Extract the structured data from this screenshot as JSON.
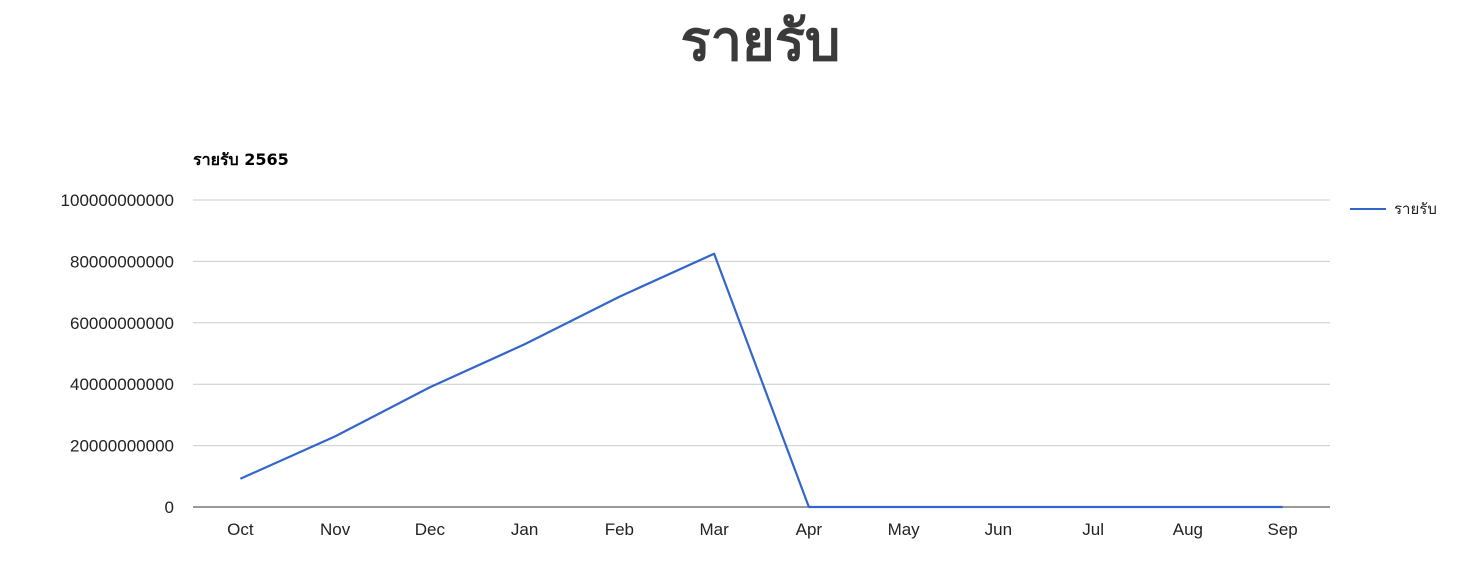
{
  "page": {
    "heading": "รายรับ"
  },
  "colors": {
    "series": "#3366cc",
    "grid": "#cccccc",
    "heading": "#3a3a3a"
  },
  "chart_data": {
    "type": "line",
    "title": "รายรับ 2565",
    "xlabel": "",
    "ylabel": "",
    "categories": [
      "Oct",
      "Nov",
      "Dec",
      "Jan",
      "Feb",
      "Mar",
      "Apr",
      "May",
      "Jun",
      "Jul",
      "Aug",
      "Sep"
    ],
    "series": [
      {
        "name": "รายรับ",
        "values": [
          9200000000,
          23000000000,
          39000000000,
          53000000000,
          68500000000,
          82500000000,
          0,
          0,
          0,
          0,
          0,
          0
        ]
      }
    ],
    "ylim": [
      0,
      100000000000
    ],
    "yticks": [
      "0",
      "20000000000",
      "40000000000",
      "60000000000",
      "80000000000",
      "100000000000"
    ],
    "grid": true,
    "legend_position": "right"
  }
}
